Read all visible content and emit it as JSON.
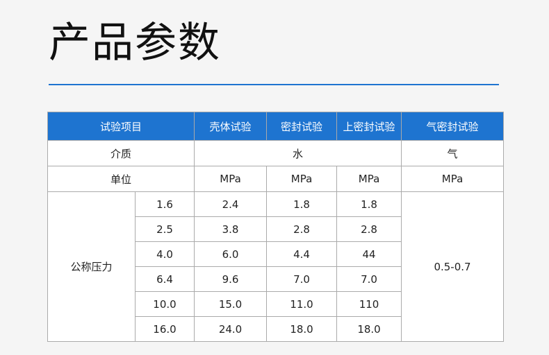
{
  "title": "产品参数",
  "colors": {
    "accent": "#1e74d0",
    "background": "#f5f5f5"
  },
  "table": {
    "headers": [
      "试验项目",
      "壳体试验",
      "密封试验",
      "上密封试验",
      "气密封试验"
    ],
    "medium": {
      "label": "介质",
      "water": "水",
      "gas": "气"
    },
    "unit": {
      "label": "单位",
      "values": [
        "MPa",
        "MPa",
        "MPa",
        "MPa"
      ]
    },
    "pressure": {
      "label": "公称压力",
      "gas_value": "0.5-0.7",
      "rows": [
        [
          "1.6",
          "2.4",
          "1.8",
          "1.8"
        ],
        [
          "2.5",
          "3.8",
          "2.8",
          "2.8"
        ],
        [
          "4.0",
          "6.0",
          "4.4",
          "44"
        ],
        [
          "6.4",
          "9.6",
          "7.0",
          "7.0"
        ],
        [
          "10.0",
          "15.0",
          "11.0",
          "110"
        ],
        [
          "16.0",
          "24.0",
          "18.0",
          "18.0"
        ]
      ]
    }
  }
}
